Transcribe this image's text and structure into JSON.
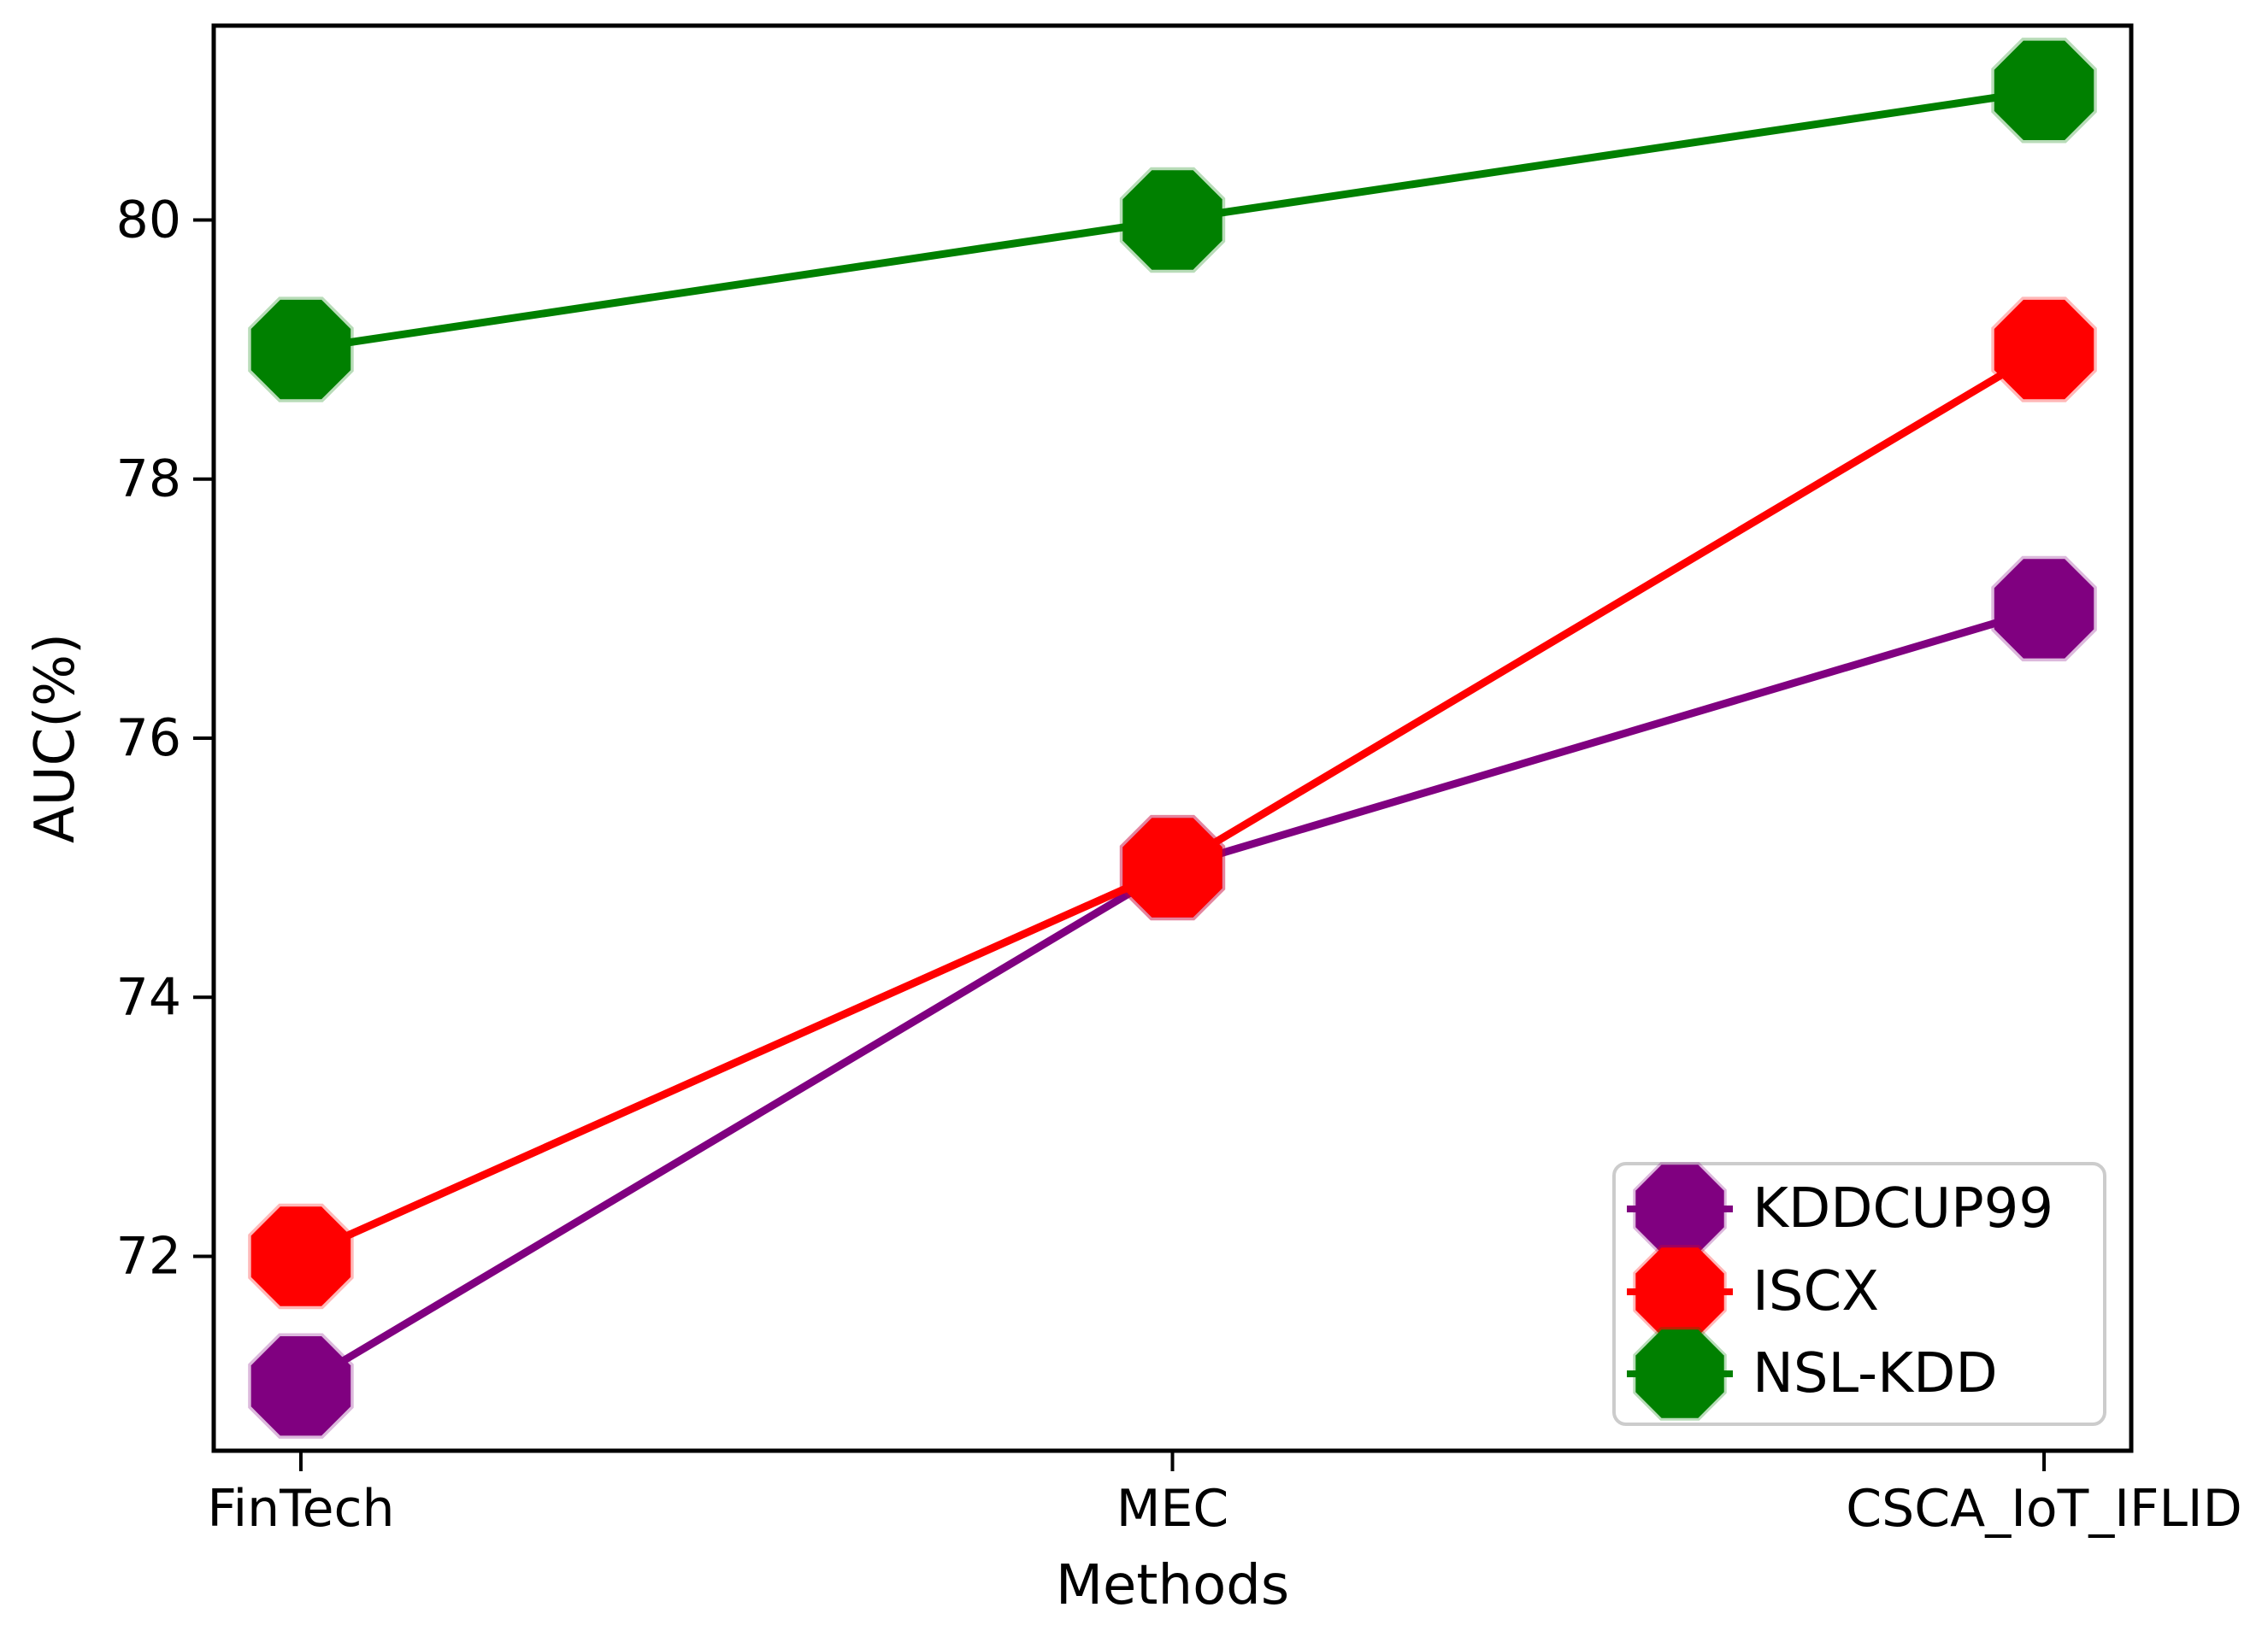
{
  "figure": {
    "background": "#ffffff"
  },
  "chart_data": {
    "type": "line",
    "title": "",
    "xlabel": "Methods",
    "ylabel": "AUC(%)",
    "categories": [
      "FinTech",
      "MEC",
      "CSCA_IoT_IFLID"
    ],
    "series": [
      {
        "name": "KDDCUP99",
        "color": "#800080",
        "values": [
          71,
          75,
          77
        ]
      },
      {
        "name": "ISCX",
        "color": "#ff0000",
        "values": [
          72,
          75,
          79
        ]
      },
      {
        "name": "NSL-KDD",
        "color": "#008000",
        "values": [
          79,
          80,
          81
        ]
      }
    ],
    "marker": "octagon",
    "line_width": 9,
    "marker_radius": 63,
    "xlim": [
      -0.1,
      2.1
    ],
    "ylim": [
      70.5,
      81.5
    ],
    "yticks": [
      72,
      74,
      76,
      78,
      80
    ],
    "grid": false,
    "axis_color": "#000000",
    "text_color": "#000000",
    "legend": {
      "position": "lower right",
      "labels": [
        "KDDCUP99",
        "ISCX",
        "NSL-KDD"
      ],
      "border_color": "#cccccc",
      "background": "#ffffff"
    }
  }
}
